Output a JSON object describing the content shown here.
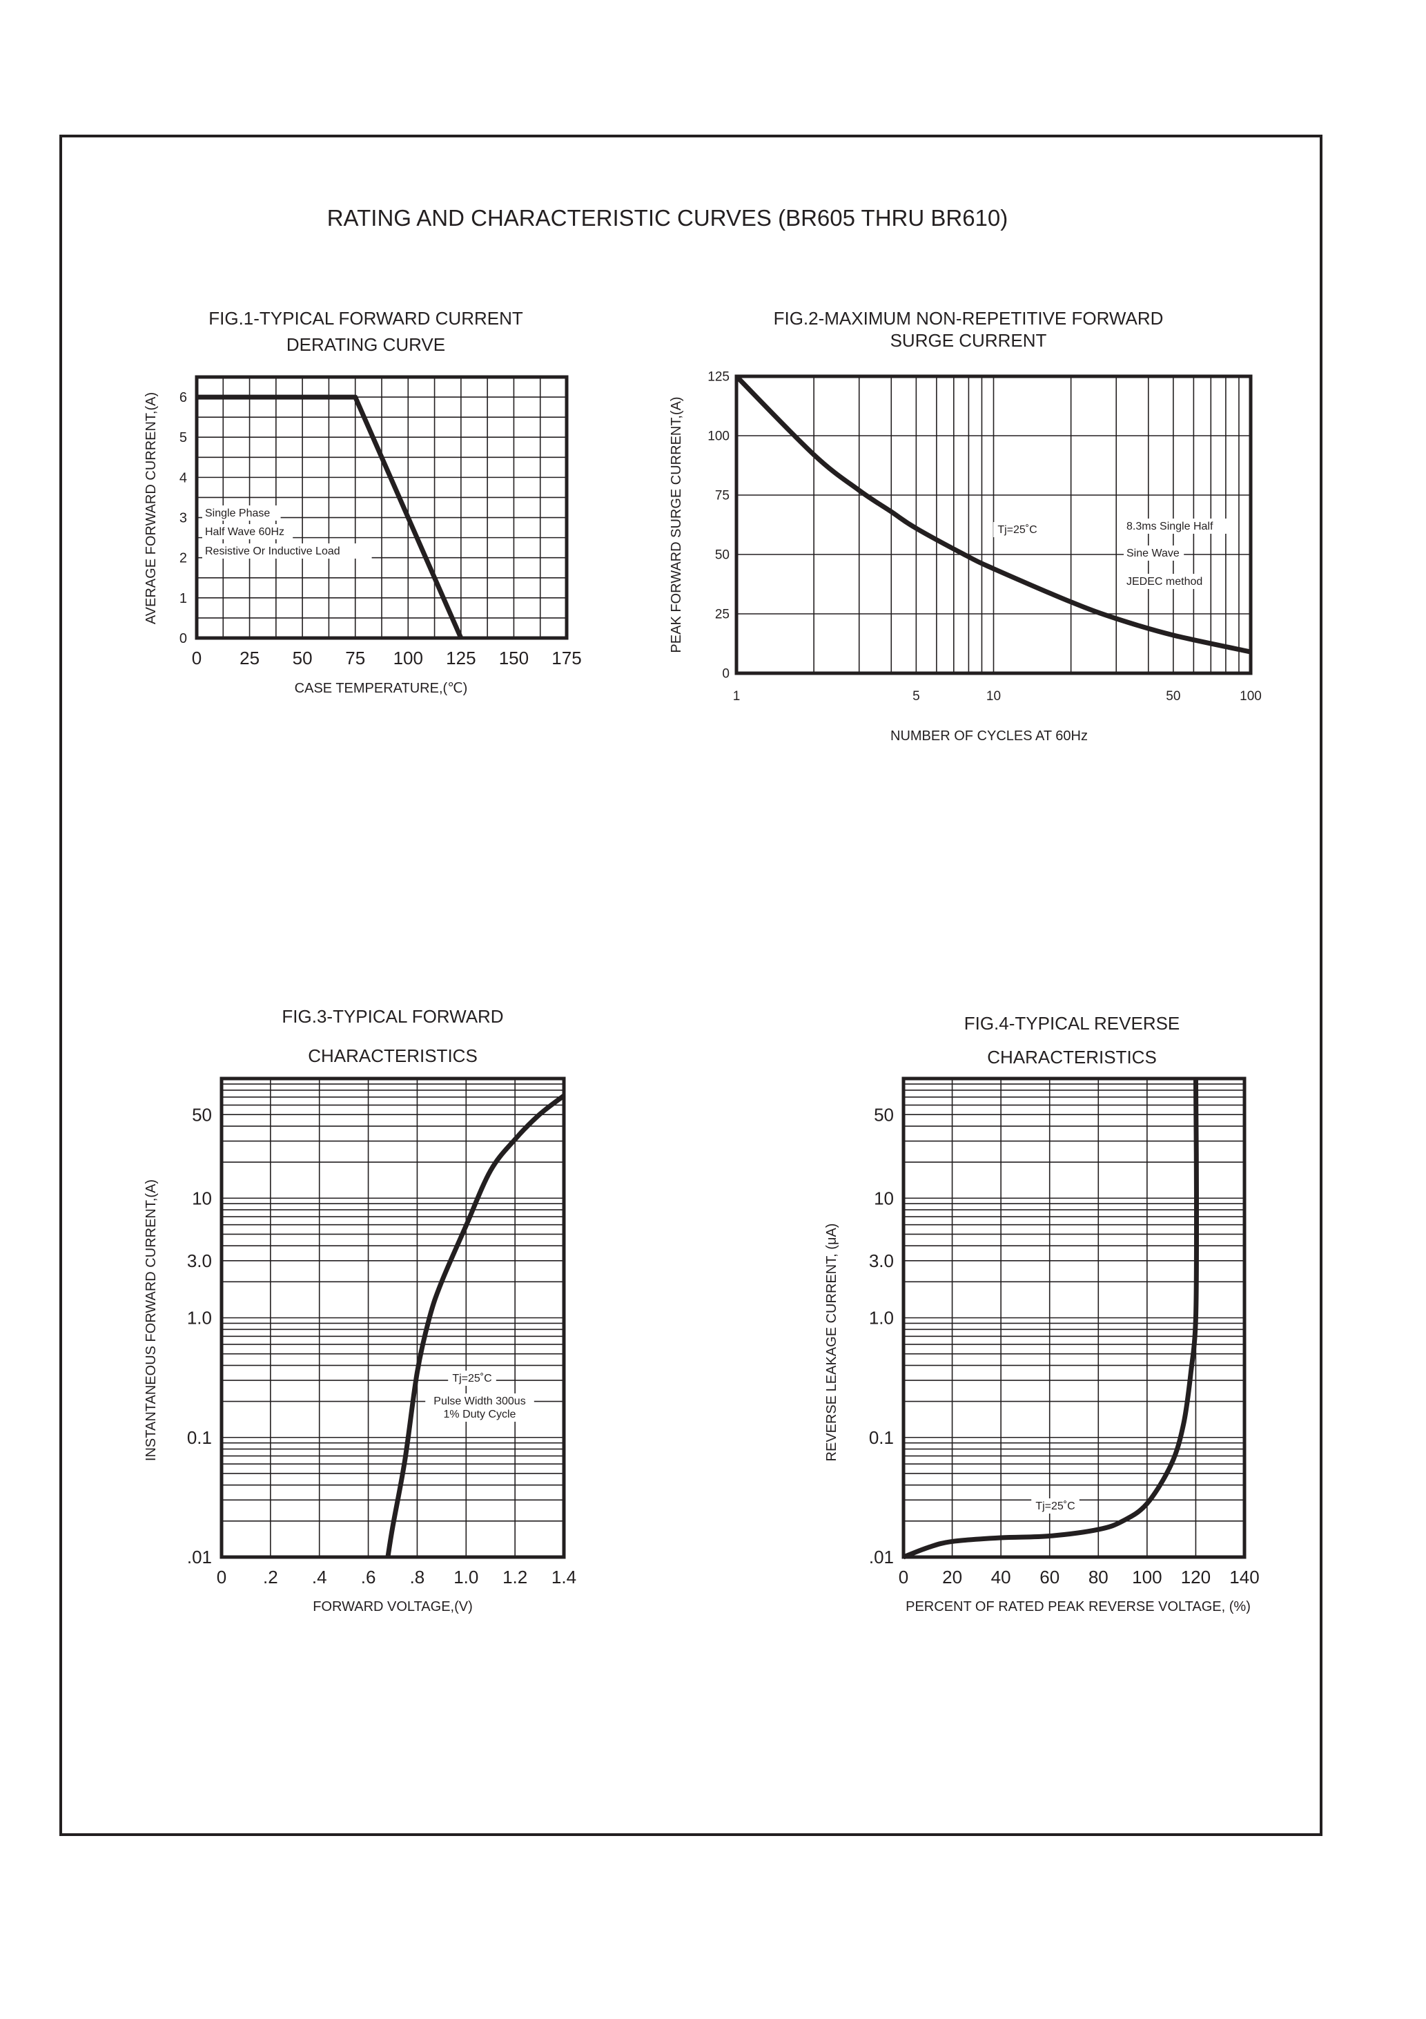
{
  "page": {
    "title": "RATING AND CHARACTERISTIC CURVES (BR605 THRU BR610)"
  },
  "colors": {
    "ink": "#231f20",
    "background": "#ffffff"
  },
  "chart_data": [
    {
      "type": "line",
      "title": [
        "FIG.1-TYPICAL FORWARD CURRENT",
        "DERATING CURVE"
      ],
      "xlabel": "CASE TEMPERATURE,(℃)",
      "ylabel": "AVERAGE FORWARD CURRENT,(A)",
      "xscale": "linear",
      "yscale": "linear",
      "xlim": [
        0,
        175
      ],
      "ylim": [
        0,
        6.5
      ],
      "grid": true,
      "x_ticks": [
        {
          "v": 0,
          "label": "0"
        },
        {
          "v": 25,
          "label": "25"
        },
        {
          "v": 50,
          "label": "50"
        },
        {
          "v": 75,
          "label": "75"
        },
        {
          "v": 100,
          "label": "100"
        },
        {
          "v": 125,
          "label": "125"
        },
        {
          "v": 150,
          "label": "150"
        },
        {
          "v": 175,
          "label": "175"
        }
      ],
      "y_ticks": [
        {
          "v": 0,
          "label": "0"
        },
        {
          "v": 1,
          "label": "1"
        },
        {
          "v": 2,
          "label": "2"
        },
        {
          "v": 3,
          "label": "3"
        },
        {
          "v": 4,
          "label": "4"
        },
        {
          "v": 5,
          "label": "5"
        },
        {
          "v": 6,
          "label": "6"
        }
      ],
      "series": [
        {
          "x": [
            0,
            75,
            125
          ],
          "y": [
            6,
            6,
            0
          ]
        }
      ],
      "annotations": [
        "Single Phase",
        "Half Wave 60Hz",
        "Resistive Or Inductive Load"
      ]
    },
    {
      "type": "line",
      "title": [
        "FIG.2-MAXIMUM NON-REPETITIVE FORWARD",
        "SURGE CURRENT"
      ],
      "xlabel": "NUMBER OF CYCLES AT 60Hz",
      "ylabel": "PEAK FORWARD SURGE CURRENT,(A)",
      "xscale": "log",
      "yscale": "linear",
      "xlim": [
        1,
        100
      ],
      "ylim": [
        0,
        125
      ],
      "grid": true,
      "x_ticks": [
        {
          "v": 1,
          "label": "1"
        },
        {
          "v": 5,
          "label": "5"
        },
        {
          "v": 10,
          "label": "10"
        },
        {
          "v": 50,
          "label": "50"
        },
        {
          "v": 100,
          "label": "100"
        }
      ],
      "y_ticks": [
        {
          "v": 0,
          "label": "0"
        },
        {
          "v": 25,
          "label": "25"
        },
        {
          "v": 50,
          "label": "50"
        },
        {
          "v": 75,
          "label": "75"
        },
        {
          "v": 100,
          "label": "100"
        },
        {
          "v": 125,
          "label": "125"
        }
      ],
      "series": [
        {
          "x": [
            1,
            2,
            3,
            4,
            5,
            8,
            10,
            20,
            30,
            50,
            100
          ],
          "y": [
            125,
            92,
            77,
            68,
            61,
            49,
            44,
            30,
            23,
            16,
            9
          ]
        }
      ],
      "annotations": [
        "Tj=25˚C",
        "8.3ms Single Half",
        "Sine Wave",
        "JEDEC method"
      ]
    },
    {
      "type": "line",
      "title": [
        "FIG.3-TYPICAL FORWARD",
        "CHARACTERISTICS"
      ],
      "xlabel": "FORWARD VOLTAGE,(V)",
      "ylabel": "INSTANTANEOUS FORWARD CURRENT,(A)",
      "xscale": "linear",
      "yscale": "log",
      "xlim": [
        0,
        1.4
      ],
      "ylim": [
        0.01,
        100
      ],
      "grid": true,
      "x_ticks": [
        {
          "v": 0,
          "label": "0"
        },
        {
          "v": 0.2,
          "label": ".2"
        },
        {
          "v": 0.4,
          "label": ".4"
        },
        {
          "v": 0.6,
          "label": ".6"
        },
        {
          "v": 0.8,
          "label": ".8"
        },
        {
          "v": 1.0,
          "label": "1.0"
        },
        {
          "v": 1.2,
          "label": "1.2"
        },
        {
          "v": 1.4,
          "label": "1.4"
        }
      ],
      "y_ticks": [
        {
          "v": 0.01,
          "label": ".01"
        },
        {
          "v": 0.1,
          "label": "0.1"
        },
        {
          "v": 1,
          "label": "1.0"
        },
        {
          "v": 3,
          "label": "3.0"
        },
        {
          "v": 10,
          "label": "10"
        },
        {
          "v": 50,
          "label": "50"
        }
      ],
      "series": [
        {
          "x": [
            0.68,
            0.7,
            0.75,
            0.8,
            0.85,
            0.9,
            1.0,
            1.1,
            1.2,
            1.3,
            1.4
          ],
          "y": [
            0.01,
            0.018,
            0.065,
            0.35,
            1.0,
            2.0,
            5.9,
            17,
            31,
            50,
            72
          ]
        }
      ],
      "annotations": [
        "Tj=25˚C",
        "Pulse Width 300us",
        "1% Duty Cycle"
      ]
    },
    {
      "type": "line",
      "title": [
        "FIG.4-TYPICAL REVERSE",
        "CHARACTERISTICS"
      ],
      "xlabel": "PERCENT OF RATED PEAK REVERSE VOLTAGE, (%)",
      "ylabel": "REVERSE LEAKAGE CURRENT, (μA)",
      "xscale": "linear",
      "yscale": "log",
      "xlim": [
        0,
        140
      ],
      "ylim": [
        0.01,
        100
      ],
      "grid": true,
      "x_ticks": [
        {
          "v": 0,
          "label": "0"
        },
        {
          "v": 20,
          "label": "20"
        },
        {
          "v": 40,
          "label": "40"
        },
        {
          "v": 60,
          "label": "60"
        },
        {
          "v": 80,
          "label": "80"
        },
        {
          "v": 100,
          "label": "100"
        },
        {
          "v": 120,
          "label": "120"
        },
        {
          "v": 140,
          "label": "140"
        }
      ],
      "y_ticks": [
        {
          "v": 0.01,
          "label": ".01"
        },
        {
          "v": 0.1,
          "label": "0.1"
        },
        {
          "v": 1,
          "label": "1.0"
        },
        {
          "v": 3,
          "label": "3.0"
        },
        {
          "v": 10,
          "label": "10"
        },
        {
          "v": 50,
          "label": "50"
        }
      ],
      "series": [
        {
          "x": [
            0,
            10,
            20,
            40,
            60,
            80,
            90,
            100,
            110,
            115,
            118,
            120,
            120.3,
            120
          ],
          "y": [
            0.01,
            0.012,
            0.0135,
            0.0145,
            0.015,
            0.017,
            0.02,
            0.028,
            0.06,
            0.13,
            0.35,
            1.0,
            10,
            100
          ]
        }
      ],
      "annotations": [
        "Tj=25˚C"
      ]
    }
  ]
}
